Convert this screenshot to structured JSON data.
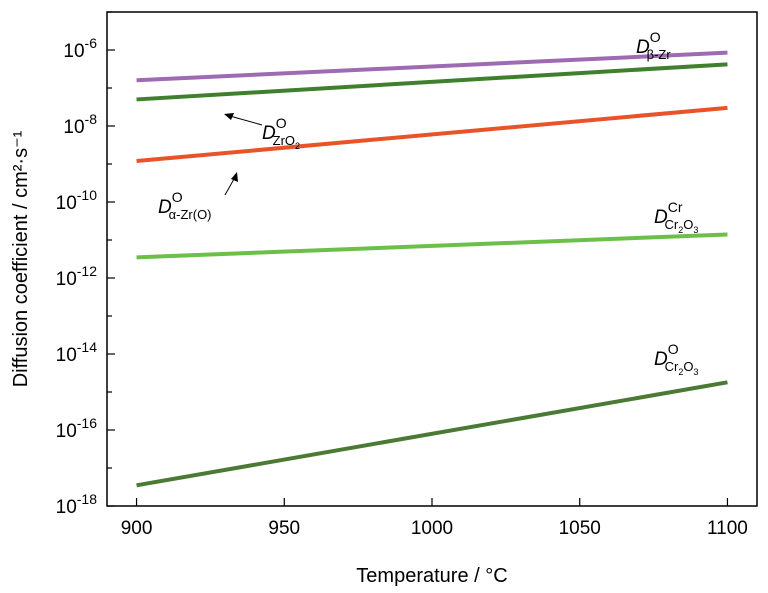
{
  "chart_data": {
    "type": "line",
    "title": "",
    "xlabel": "Temperature / °C",
    "ylabel": "Diffusion coefficient / cm²·s⁻¹",
    "xlim": [
      890,
      1110
    ],
    "ylim": [
      1e-18,
      1e-05
    ],
    "yscale": "log",
    "xticks": [
      900,
      950,
      1000,
      1050,
      1100
    ],
    "xtick_labels": [
      "900",
      "950",
      "1000",
      "1050",
      "1100"
    ],
    "yticks_exp": [
      -18,
      -16,
      -14,
      -12,
      -10,
      -8,
      -6
    ],
    "yticks_base": "10",
    "grid": false,
    "series": [
      {
        "name": "D β-Zr O",
        "label_main": "D",
        "label_sup": "O",
        "label_sub": "β-Zr",
        "color": "#9e6bb3",
        "x": [
          900,
          1100
        ],
        "y": [
          1.6e-07,
          8.5e-07
        ]
      },
      {
        "name": "D ZrO2 O",
        "label_main": "D",
        "label_sup": "O",
        "label_sub": "ZrO",
        "label_sub_sub": "2",
        "color": "#3f7f2e",
        "x": [
          900,
          1100
        ],
        "y": [
          5e-08,
          4.2e-07
        ]
      },
      {
        "name": "D α-Zr(O) O",
        "label_main": "D",
        "label_sup": "O",
        "label_sub": "α-Zr(O)",
        "color": "#e8532a",
        "x": [
          900,
          1100
        ],
        "y": [
          1.2e-09,
          3e-08
        ]
      },
      {
        "name": "D Cr2O3 Cr",
        "label_main": "D",
        "label_sup": "Cr",
        "label_sub": "Cr",
        "label_sub_sub": "2",
        "label_sub2": "O",
        "label_sub_sub2": "3",
        "color": "#6cc04a",
        "x": [
          900,
          1100
        ],
        "y": [
          3.5e-12,
          1.4e-11
        ]
      },
      {
        "name": "D Cr2O3 O",
        "label_main": "D",
        "label_sup": "O",
        "label_sub": "Cr",
        "label_sub_sub": "2",
        "label_sub2": "O",
        "label_sub_sub2": "3",
        "color": "#4a7a33",
        "x": [
          900,
          1100
        ],
        "y": [
          3.5e-18,
          1.8e-15
        ]
      }
    ]
  }
}
